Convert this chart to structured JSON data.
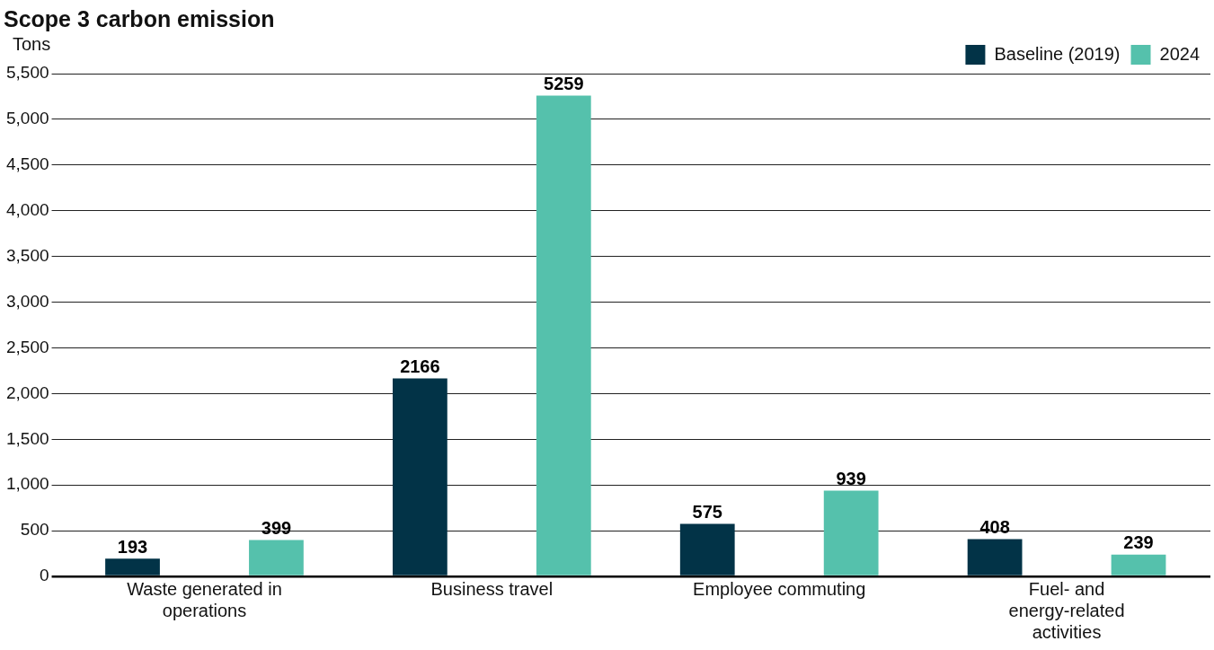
{
  "chart_data": {
    "type": "bar",
    "title": "Scope 3 carbon emission",
    "ylabel": "Tons",
    "categories": [
      "Waste generated in operations",
      "Business travel",
      "Employee commuting",
      "Fuel- and energy-related activities"
    ],
    "series": [
      {
        "name": "Baseline (2019)",
        "color": "#023347",
        "values": [
          193,
          2166,
          575,
          408
        ]
      },
      {
        "name": "2024",
        "color": "#55c1ac",
        "values": [
          399,
          5259,
          939,
          239
        ]
      }
    ],
    "ylim": [
      0,
      5500
    ],
    "yticks": [
      0,
      500,
      {
        "value": 1000,
        "label": "1,000"
      },
      {
        "value": 1500,
        "label": "1,500"
      },
      {
        "value": 2000,
        "label": "2,000"
      },
      {
        "value": 2500,
        "label": "2,500"
      },
      {
        "value": 3000,
        "label": "3,000"
      },
      {
        "value": 3500,
        "label": "3,500"
      },
      {
        "value": 4000,
        "label": "4,000"
      },
      {
        "value": 4500,
        "label": "4,500"
      },
      {
        "value": 5000,
        "label": "5,000"
      },
      {
        "value": 5500,
        "label": "5,500"
      }
    ],
    "grid": "y",
    "legend": "top right",
    "data_labels": true
  }
}
